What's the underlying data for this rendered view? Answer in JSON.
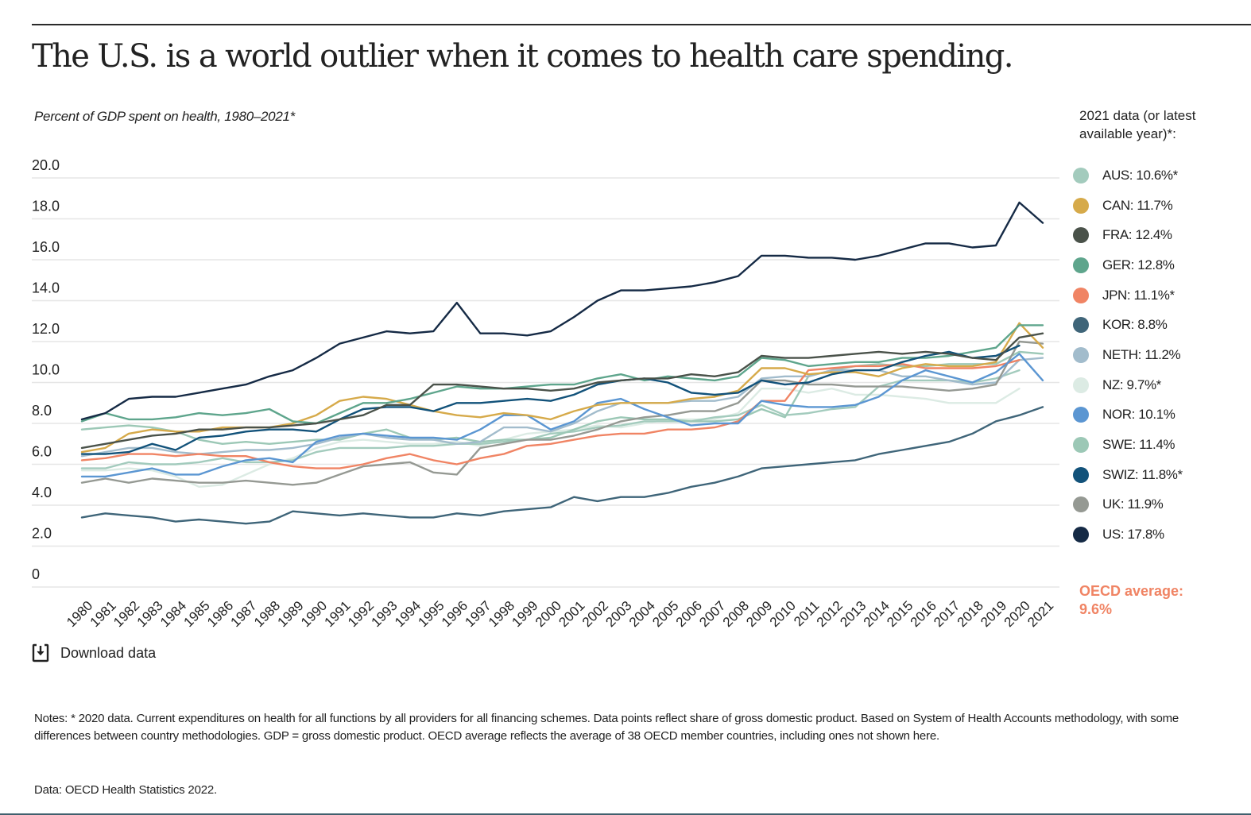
{
  "header": {
    "title": "The U.S. is a world outlier when it comes to health care spending.",
    "subtitle": "Percent of GDP spent on health, 1980–2021*"
  },
  "legend": {
    "title": "2021 data (or latest available year)*:",
    "items": [
      {
        "key": "AUS",
        "label": "AUS: 10.6%*",
        "color": "#a3cbbd"
      },
      {
        "key": "CAN",
        "label": "CAN: 11.7%",
        "color": "#d6aa4a"
      },
      {
        "key": "FRA",
        "label": "FRA: 12.4%",
        "color": "#4a524a"
      },
      {
        "key": "GER",
        "label": "GER: 12.8%",
        "color": "#5ea58c"
      },
      {
        "key": "JPN",
        "label": "JPN: 11.1%*",
        "color": "#f08464"
      },
      {
        "key": "KOR",
        "label": "KOR: 8.8%",
        "color": "#3f6579"
      },
      {
        "key": "NETH",
        "label": "NETH: 11.2%",
        "color": "#a2bccc"
      },
      {
        "key": "NZ",
        "label": "NZ: 9.7%*",
        "color": "#dcebe4"
      },
      {
        "key": "NOR",
        "label": "NOR: 10.1%",
        "color": "#5b96d2"
      },
      {
        "key": "SWE",
        "label": "SWE: 11.4%",
        "color": "#9cc8b6"
      },
      {
        "key": "SWIZ",
        "label": "SWIZ: 11.8%*",
        "color": "#12527a"
      },
      {
        "key": "UK",
        "label": "UK: 11.9%",
        "color": "#959993"
      },
      {
        "key": "US",
        "label": "US: 17.8%",
        "color": "#152a45"
      }
    ],
    "oecd_average": {
      "label": "OECD average:",
      "value": "9.6%",
      "color": "#f08464"
    }
  },
  "download": {
    "label": "Download data",
    "icon": "download-icon"
  },
  "notes": "Notes: * 2020 data. Current expenditures on health for all functions by all providers for all financing schemes. Data points reflect share of gross domestic product. Based on System of Health Accounts methodology, with some differences between country methodologies. GDP = gross domestic product. OECD average reflects the average of 38 OECD member countries, including ones not shown here.",
  "source": "Data: OECD Health Statistics 2022.",
  "chart_data": {
    "type": "line",
    "title": "The U.S. is a world outlier when it comes to health care spending.",
    "subtitle": "Percent of GDP spent on health, 1980–2021*",
    "xlabel": "",
    "ylabel": "Percent of GDP",
    "ylim": [
      0,
      20
    ],
    "yticks": [
      0,
      2,
      4,
      6,
      8,
      10,
      12,
      14,
      16,
      18,
      20
    ],
    "ytick_labels": [
      "0",
      "2.0",
      "4.0",
      "6.0",
      "8.0",
      "10.0",
      "12.0",
      "14.0",
      "16.0",
      "18.0",
      "20.0"
    ],
    "grid": true,
    "legend_position": "right",
    "x": [
      1980,
      1981,
      1982,
      1983,
      1984,
      1985,
      1986,
      1987,
      1988,
      1989,
      1990,
      1991,
      1992,
      1993,
      1994,
      1995,
      1996,
      1997,
      1998,
      1999,
      2000,
      2001,
      2002,
      2003,
      2004,
      2005,
      2006,
      2007,
      2008,
      2009,
      2010,
      2011,
      2012,
      2013,
      2014,
      2015,
      2016,
      2017,
      2018,
      2019,
      2020,
      2021
    ],
    "series": [
      {
        "name": "AUS",
        "values": [
          5.8,
          5.8,
          6.1,
          6.0,
          6.0,
          6.1,
          6.3,
          6.1,
          6.1,
          6.2,
          6.6,
          6.8,
          6.8,
          6.8,
          6.9,
          6.9,
          7.0,
          7.0,
          7.1,
          7.2,
          7.5,
          7.6,
          7.8,
          7.9,
          8.1,
          8.1,
          8.1,
          8.3,
          8.4,
          8.9,
          8.4,
          8.5,
          8.7,
          8.8,
          9.8,
          10.1,
          10.1,
          10.1,
          10.0,
          10.2,
          10.6,
          null
        ]
      },
      {
        "name": "CAN",
        "values": [
          6.6,
          6.8,
          7.5,
          7.7,
          7.6,
          7.6,
          7.8,
          7.8,
          7.8,
          8.0,
          8.4,
          9.1,
          9.3,
          9.2,
          8.9,
          8.6,
          8.4,
          8.3,
          8.5,
          8.4,
          8.2,
          8.6,
          8.9,
          9.0,
          9.0,
          9.0,
          9.2,
          9.3,
          9.6,
          10.7,
          10.7,
          10.4,
          10.5,
          10.5,
          10.3,
          10.7,
          10.9,
          10.8,
          10.8,
          11.0,
          12.9,
          11.7
        ]
      },
      {
        "name": "FRA",
        "values": [
          6.8,
          7.0,
          7.2,
          7.4,
          7.5,
          7.7,
          7.7,
          7.8,
          7.8,
          7.9,
          8.0,
          8.2,
          8.4,
          8.9,
          8.9,
          9.9,
          9.9,
          9.8,
          9.7,
          9.7,
          9.6,
          9.7,
          10.0,
          10.1,
          10.2,
          10.2,
          10.4,
          10.3,
          10.5,
          11.3,
          11.2,
          11.2,
          11.3,
          11.4,
          11.5,
          11.4,
          11.5,
          11.4,
          11.2,
          11.1,
          12.2,
          12.4
        ]
      },
      {
        "name": "GER",
        "values": [
          8.1,
          8.5,
          8.2,
          8.2,
          8.3,
          8.5,
          8.4,
          8.5,
          8.7,
          8.1,
          8.0,
          8.5,
          9.0,
          9.0,
          9.2,
          9.5,
          9.8,
          9.7,
          9.7,
          9.8,
          9.9,
          9.9,
          10.2,
          10.4,
          10.1,
          10.3,
          10.2,
          10.1,
          10.3,
          11.2,
          11.1,
          10.8,
          10.9,
          11.0,
          11.0,
          11.2,
          11.2,
          11.3,
          11.5,
          11.7,
          12.8,
          12.8
        ]
      },
      {
        "name": "JPN",
        "values": [
          6.2,
          6.3,
          6.5,
          6.5,
          6.4,
          6.5,
          6.4,
          6.4,
          6.1,
          5.9,
          5.8,
          5.8,
          6.0,
          6.3,
          6.5,
          6.2,
          6.0,
          6.3,
          6.5,
          6.9,
          7.0,
          7.2,
          7.4,
          7.5,
          7.5,
          7.7,
          7.7,
          7.8,
          8.1,
          9.1,
          9.1,
          10.6,
          10.7,
          10.8,
          10.8,
          10.9,
          10.7,
          10.7,
          10.7,
          10.8,
          11.1,
          null
        ]
      },
      {
        "name": "KOR",
        "values": [
          3.4,
          3.6,
          3.5,
          3.4,
          3.2,
          3.3,
          3.2,
          3.1,
          3.2,
          3.7,
          3.6,
          3.5,
          3.6,
          3.5,
          3.4,
          3.4,
          3.6,
          3.5,
          3.7,
          3.8,
          3.9,
          4.4,
          4.2,
          4.4,
          4.4,
          4.6,
          4.9,
          5.1,
          5.4,
          5.8,
          5.9,
          6.0,
          6.1,
          6.2,
          6.5,
          6.7,
          6.9,
          7.1,
          7.5,
          8.1,
          8.4,
          8.8
        ]
      },
      {
        "name": "NETH",
        "values": [
          6.4,
          6.6,
          6.8,
          6.8,
          6.6,
          6.5,
          6.6,
          6.7,
          6.7,
          6.8,
          7.0,
          7.3,
          7.5,
          7.3,
          7.2,
          7.2,
          7.0,
          7.1,
          7.8,
          7.8,
          7.6,
          8.0,
          8.6,
          9.0,
          9.0,
          9.0,
          9.1,
          9.1,
          9.3,
          10.2,
          10.3,
          10.3,
          10.6,
          10.6,
          10.6,
          10.3,
          10.3,
          10.1,
          9.9,
          10.0,
          11.1,
          11.2
        ]
      },
      {
        "name": "NZ",
        "values": [
          5.7,
          5.7,
          5.8,
          5.7,
          5.4,
          4.9,
          5.0,
          5.5,
          6.0,
          6.3,
          6.8,
          7.1,
          7.2,
          7.1,
          7.0,
          7.0,
          7.1,
          6.9,
          7.2,
          7.5,
          7.6,
          7.7,
          7.9,
          7.8,
          8.0,
          8.2,
          8.2,
          8.2,
          8.5,
          9.7,
          9.7,
          9.5,
          9.7,
          9.4,
          9.4,
          9.3,
          9.2,
          9.0,
          9.0,
          9.0,
          9.7,
          null
        ]
      },
      {
        "name": "NOR",
        "values": [
          5.4,
          5.4,
          5.6,
          5.8,
          5.5,
          5.5,
          5.9,
          6.2,
          6.3,
          6.1,
          7.1,
          7.4,
          7.5,
          7.4,
          7.3,
          7.3,
          7.2,
          7.7,
          8.4,
          8.4,
          7.7,
          8.1,
          9.0,
          9.2,
          8.7,
          8.3,
          7.9,
          8.0,
          8.0,
          9.1,
          8.9,
          8.8,
          8.8,
          8.9,
          9.3,
          10.1,
          10.6,
          10.3,
          10.0,
          10.5,
          11.4,
          10.1
        ]
      },
      {
        "name": "SWE",
        "values": [
          7.7,
          7.8,
          7.9,
          7.8,
          7.6,
          7.2,
          7.0,
          7.1,
          7.0,
          7.1,
          7.2,
          7.2,
          7.5,
          7.7,
          7.3,
          7.2,
          7.3,
          7.1,
          7.2,
          7.2,
          7.3,
          7.7,
          8.1,
          8.3,
          8.2,
          8.2,
          8.1,
          8.1,
          8.2,
          8.7,
          8.3,
          10.3,
          10.6,
          10.8,
          10.9,
          10.8,
          10.8,
          10.9,
          10.9,
          10.9,
          11.5,
          11.4
        ]
      },
      {
        "name": "SWIZ",
        "values": [
          6.5,
          6.5,
          6.6,
          7.0,
          6.7,
          7.3,
          7.4,
          7.6,
          7.7,
          7.7,
          7.6,
          8.2,
          8.7,
          8.8,
          8.8,
          8.6,
          9.0,
          9.0,
          9.1,
          9.2,
          9.1,
          9.4,
          9.9,
          10.1,
          10.2,
          10.0,
          9.5,
          9.4,
          9.5,
          10.1,
          9.9,
          10.0,
          10.4,
          10.6,
          10.6,
          11.0,
          11.3,
          11.5,
          11.2,
          11.3,
          11.8,
          null
        ]
      },
      {
        "name": "UK",
        "values": [
          5.1,
          5.3,
          5.1,
          5.3,
          5.2,
          5.1,
          5.1,
          5.2,
          5.1,
          5.0,
          5.1,
          5.5,
          5.9,
          6.0,
          6.1,
          5.6,
          5.5,
          6.8,
          7.0,
          7.2,
          7.2,
          7.4,
          7.7,
          8.1,
          8.3,
          8.4,
          8.6,
          8.6,
          9.0,
          10.1,
          10.1,
          9.9,
          9.9,
          9.8,
          9.8,
          9.8,
          9.7,
          9.6,
          9.7,
          9.9,
          12.0,
          11.9
        ]
      },
      {
        "name": "US",
        "values": [
          8.2,
          8.5,
          9.2,
          9.3,
          9.3,
          9.5,
          9.7,
          9.9,
          10.3,
          10.6,
          11.2,
          11.9,
          12.2,
          12.5,
          12.4,
          12.5,
          13.9,
          12.4,
          12.4,
          12.3,
          12.5,
          13.2,
          14.0,
          14.5,
          14.5,
          14.6,
          14.7,
          14.9,
          15.2,
          16.2,
          16.2,
          16.1,
          16.1,
          16.0,
          16.2,
          16.5,
          16.8,
          16.8,
          16.6,
          16.7,
          18.8,
          17.8
        ]
      }
    ]
  }
}
